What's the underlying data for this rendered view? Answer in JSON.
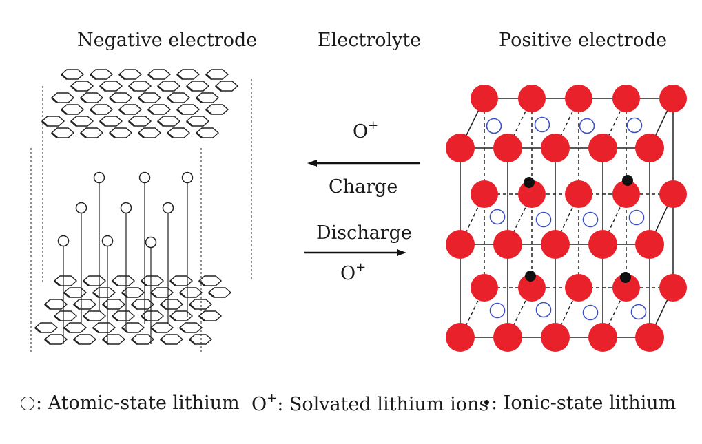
{
  "headers": {
    "negative": "Negative electrode",
    "electrolyte": "Electrolyte",
    "positive": "Positive electrode"
  },
  "arrows": {
    "top_ion": "O",
    "top_ion_sup": "+",
    "charge": "Charge",
    "discharge": "Discharge",
    "bottom_ion": "O",
    "bottom_ion_sup": "+"
  },
  "legend": {
    "atomic_text": ": Atomic-state lithium",
    "solvated_symbol": "O",
    "solvated_sup": "+",
    "solvated_text": ":  Solvated lithium ions",
    "ionic_text": ": Ionic-state lithium"
  },
  "colors": {
    "cathode_atom": "#e8212b",
    "ion_ring": "#3a4fc4",
    "ionic_lithium": "#111111",
    "line": "#222222"
  }
}
